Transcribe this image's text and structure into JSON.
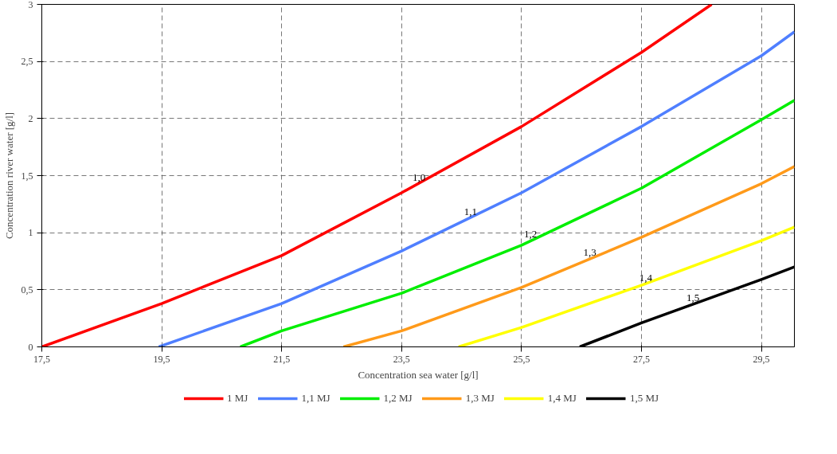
{
  "chart_data": {
    "type": "line",
    "xlabel": "Concentration sea water [g/l]",
    "ylabel": "Concentration river water [g/l]",
    "xlim": [
      17.5,
      30.05
    ],
    "ylim": [
      0,
      3
    ],
    "xticks": [
      {
        "value": 17.5,
        "label": "17,5"
      },
      {
        "value": 19.5,
        "label": "19,5"
      },
      {
        "value": 21.5,
        "label": "21,5"
      },
      {
        "value": 23.5,
        "label": "23,5"
      },
      {
        "value": 25.5,
        "label": "25,5"
      },
      {
        "value": 27.5,
        "label": "27,5"
      },
      {
        "value": 29.5,
        "label": "29,5"
      }
    ],
    "yticks": [
      0,
      {
        "value": 0.5,
        "label": "0,5"
      },
      1,
      {
        "value": 1.5,
        "label": "1,5"
      },
      2,
      {
        "value": 2.5,
        "label": "2,5"
      },
      3
    ],
    "grid": true,
    "line_style": "solid",
    "legend": "bottom",
    "marker": "none",
    "series": [
      {
        "name": "1 MJ",
        "color": "#ff0000",
        "x": [
          17.5,
          19.5,
          21.5,
          23.5,
          25.5,
          27.5,
          28.67
        ],
        "values": [
          0,
          0.38,
          0.8,
          1.35,
          1.93,
          2.58,
          3
        ]
      },
      {
        "name": "1,1 MJ",
        "color": "#4f7fff",
        "x": [
          19.45,
          21.5,
          23.5,
          25.5,
          27.5,
          29.5,
          30.05
        ],
        "values": [
          0,
          0.38,
          0.84,
          1.35,
          1.93,
          2.55,
          2.76
        ]
      },
      {
        "name": "1,2 MJ",
        "color": "#00ee00",
        "x": [
          20.81,
          21.5,
          23.5,
          25.5,
          27.5,
          29.5,
          30.05
        ],
        "values": [
          0,
          0.14,
          0.47,
          0.89,
          1.39,
          1.99,
          2.16
        ]
      },
      {
        "name": "1,3 MJ",
        "color": "#ff9a1a",
        "x": [
          22.53,
          23.5,
          25.5,
          27.5,
          29.5,
          30.05
        ],
        "values": [
          0,
          0.14,
          0.52,
          0.96,
          1.43,
          1.58
        ]
      },
      {
        "name": "1,4 MJ",
        "color": "#ffff00",
        "x": [
          24.45,
          25.5,
          27.5,
          29.5,
          30.05
        ],
        "values": [
          0,
          0.17,
          0.54,
          0.93,
          1.05
        ]
      },
      {
        "name": "1,5 MJ",
        "color": "#000000",
        "x": [
          26.47,
          27.5,
          29.5,
          30.05
        ],
        "values": [
          0,
          0.21,
          0.59,
          0.7
        ]
      }
    ],
    "annotations": [
      {
        "text": "1,0",
        "x": 23.79,
        "y": 1.43
      },
      {
        "text": "1,1",
        "x": 24.65,
        "y": 1.13
      },
      {
        "text": "1,2",
        "x": 25.65,
        "y": 0.93
      },
      {
        "text": "1,3",
        "x": 26.64,
        "y": 0.77
      },
      {
        "text": "1,4",
        "x": 27.57,
        "y": 0.55
      },
      {
        "text": "1,5",
        "x": 28.36,
        "y": 0.37
      }
    ]
  }
}
